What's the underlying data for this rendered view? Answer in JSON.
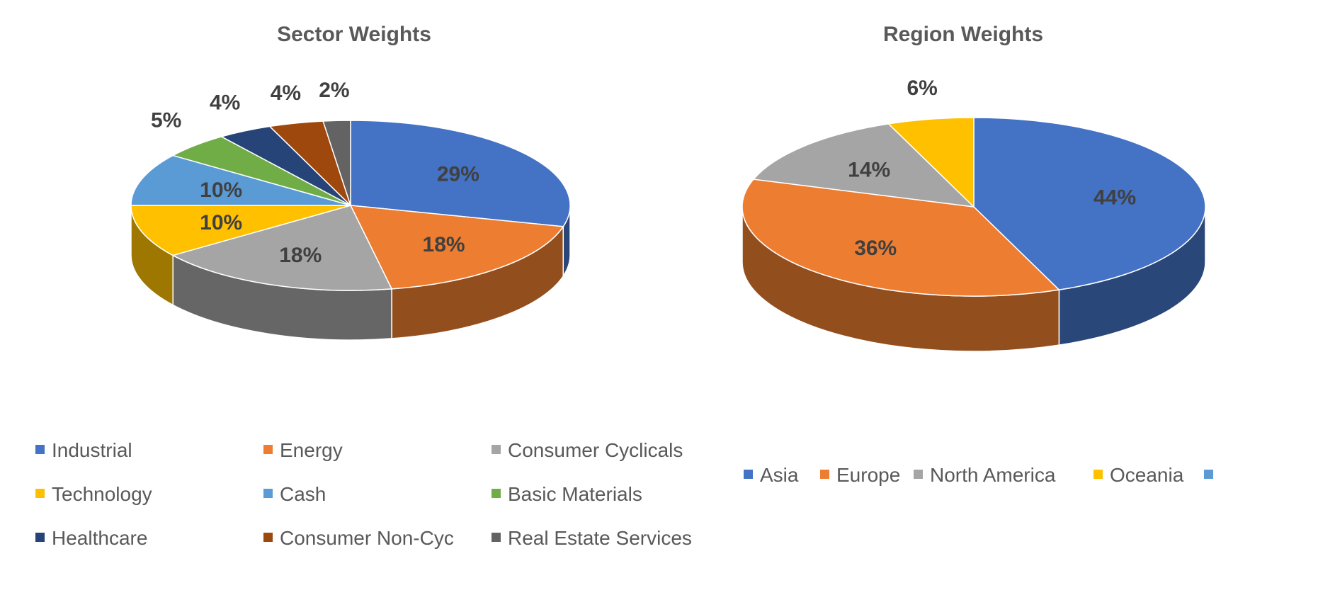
{
  "chart_data": [
    {
      "type": "pie",
      "title": "Sector Weights",
      "categories": [
        "Industrial",
        "Energy",
        "Consumer Cyclicals",
        "Technology",
        "Cash",
        "Basic Materials",
        "Healthcare",
        "Consumer Non-Cyc",
        "Real Estate Services"
      ],
      "values": [
        29,
        18,
        18,
        10,
        10,
        5,
        4,
        4,
        2
      ],
      "labels": [
        "29%",
        "18%",
        "18%",
        "10%",
        "10%",
        "5%",
        "4%",
        "4%",
        "2%"
      ],
      "colors": [
        "#4472C4",
        "#ED7D31",
        "#A5A5A5",
        "#FFC000",
        "#5B9BD5",
        "#70AD47",
        "#264478",
        "#9E480E",
        "#636363"
      ],
      "legend": "bottom",
      "style": "3d"
    },
    {
      "type": "pie",
      "title": "Region Weights",
      "categories": [
        "Asia",
        "Europe",
        "North America",
        "Oceania",
        ""
      ],
      "values": [
        44,
        36,
        14,
        6,
        0
      ],
      "labels": [
        "44%",
        "36%",
        "14%",
        "6%",
        ""
      ],
      "colors": [
        "#4472C4",
        "#ED7D31",
        "#A5A5A5",
        "#FFC000",
        "#5B9BD5"
      ],
      "legend": "bottom",
      "style": "3d"
    }
  ]
}
